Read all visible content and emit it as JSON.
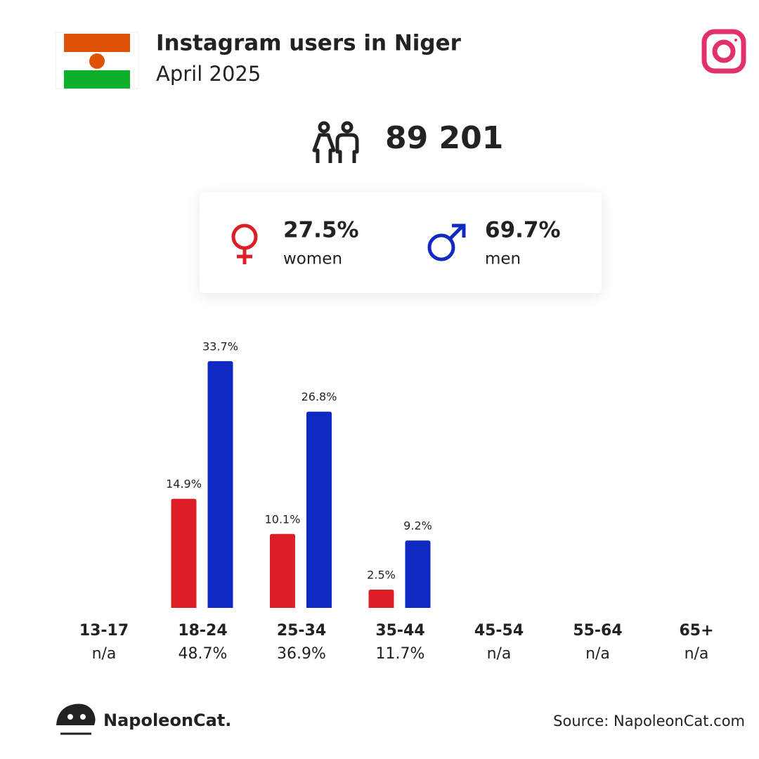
{
  "header": {
    "title": "Instagram users in Niger",
    "subtitle": "April 2025"
  },
  "summary": {
    "total": {
      "value": 89201,
      "label": "89 201"
    },
    "women": {
      "value": 27.5,
      "label": "27.5%",
      "caption": "women"
    },
    "men": {
      "value": 69.7,
      "label": "69.7%",
      "caption": "men"
    }
  },
  "chart_data": {
    "type": "bar",
    "categories": [
      "13-17",
      "18-24",
      "25-34",
      "35-44",
      "45-54",
      "55-64",
      "65+"
    ],
    "series": [
      {
        "color": "#dc1f26",
        "values": [
          null,
          14.9,
          10.1,
          2.5,
          null,
          null,
          null
        ],
        "value_labels": [
          null,
          "14.9%",
          "10.1%",
          "2.5%",
          null,
          null,
          null
        ]
      },
      {
        "color": "#0f2ac3",
        "values": [
          null,
          33.7,
          26.8,
          9.2,
          null,
          null,
          null
        ],
        "value_labels": [
          null,
          "33.7%",
          "26.8%",
          "9.2%",
          null,
          null,
          null
        ]
      }
    ],
    "totals": {
      "values": [
        null,
        48.7,
        36.9,
        11.7,
        null,
        null,
        null
      ],
      "value_labels": [
        "n/a",
        "48.7%",
        "36.9%",
        "11.7%",
        "n/a",
        "n/a",
        "n/a"
      ]
    }
  },
  "footer": {
    "brand": "NapoleonCat.",
    "source": "Source: NapoleonCat.com"
  }
}
